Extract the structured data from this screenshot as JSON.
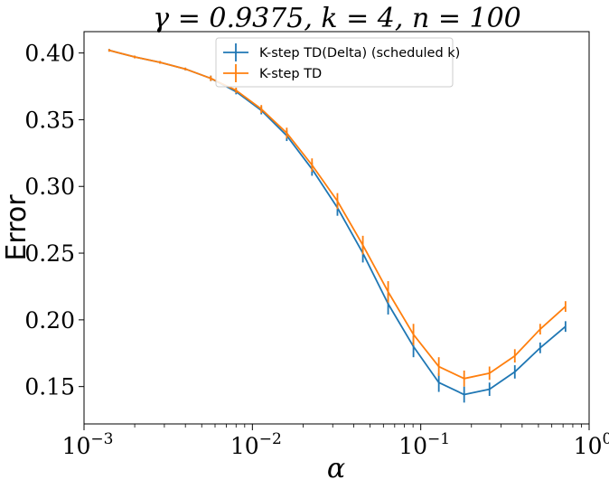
{
  "chart_data": {
    "type": "line",
    "title": "γ = 0.9375, k = 4, n = 100",
    "xlabel": "α",
    "ylabel": "Error",
    "xscale": "log",
    "xlim": [
      0.001,
      1
    ],
    "ylim": [
      0.122,
      0.416
    ],
    "xticks": [
      {
        "value": 0.001,
        "base": "10",
        "exp": "−3"
      },
      {
        "value": 0.01,
        "base": "10",
        "exp": "−2"
      },
      {
        "value": 0.1,
        "base": "10",
        "exp": "−1"
      },
      {
        "value": 1,
        "base": "10",
        "exp": "0"
      }
    ],
    "yticks": [
      {
        "value": 0.15,
        "label": "0.15"
      },
      {
        "value": 0.2,
        "label": "0.20"
      },
      {
        "value": 0.25,
        "label": "0.25"
      },
      {
        "value": 0.3,
        "label": "0.30"
      },
      {
        "value": 0.35,
        "label": "0.35"
      },
      {
        "value": 0.4,
        "label": "0.40"
      }
    ],
    "grid": false,
    "legend": "top-center",
    "x": [
      0.00141,
      0.002,
      0.00283,
      0.004,
      0.00566,
      0.008,
      0.0113,
      0.016,
      0.0226,
      0.032,
      0.0453,
      0.064,
      0.0905,
      0.128,
      0.181,
      0.256,
      0.362,
      0.512,
      0.724
    ],
    "series": [
      {
        "name": "K-step TD(Delta) (scheduled k)",
        "color": "#1f77b4",
        "values": [
          0.402,
          0.397,
          0.393,
          0.388,
          0.381,
          0.371,
          0.357,
          0.338,
          0.313,
          0.284,
          0.25,
          0.212,
          0.18,
          0.153,
          0.144,
          0.148,
          0.161,
          0.179,
          0.195
        ],
        "errors": [
          0.001,
          0.001,
          0.001,
          0.001,
          0.002,
          0.002,
          0.003,
          0.004,
          0.005,
          0.006,
          0.007,
          0.008,
          0.008,
          0.007,
          0.006,
          0.005,
          0.005,
          0.004,
          0.004
        ]
      },
      {
        "name": "K-step TD",
        "color": "#ff7f0e",
        "values": [
          0.402,
          0.397,
          0.393,
          0.388,
          0.381,
          0.372,
          0.358,
          0.34,
          0.316,
          0.289,
          0.256,
          0.221,
          0.189,
          0.165,
          0.156,
          0.16,
          0.173,
          0.193,
          0.21
        ],
        "errors": [
          0.001,
          0.001,
          0.001,
          0.001,
          0.002,
          0.002,
          0.003,
          0.004,
          0.005,
          0.006,
          0.007,
          0.008,
          0.008,
          0.007,
          0.006,
          0.005,
          0.005,
          0.004,
          0.004
        ]
      }
    ]
  }
}
